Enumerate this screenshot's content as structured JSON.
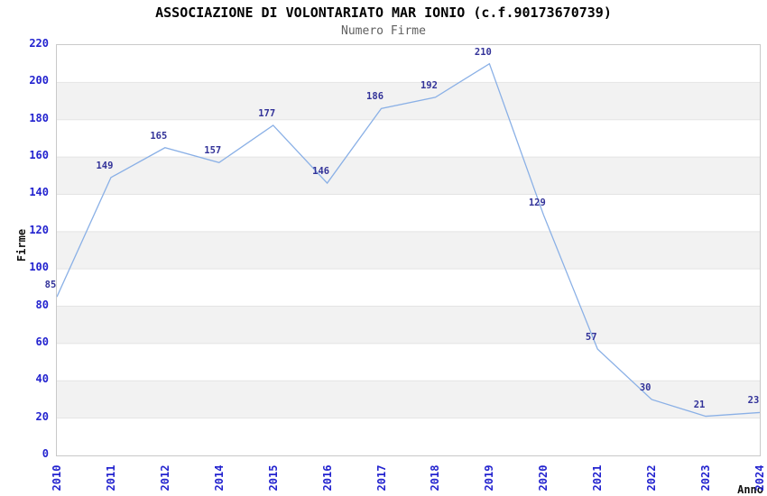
{
  "chart_data": {
    "type": "line",
    "title": "ASSOCIAZIONE DI VOLONTARIATO MAR IONIO (c.f.90173670739)",
    "subtitle": "Numero Firme",
    "xlabel": "Anno",
    "ylabel": "Firme",
    "categories": [
      "2010",
      "2011",
      "2012",
      "2014",
      "2015",
      "2016",
      "2017",
      "2018",
      "2019",
      "2020",
      "2021",
      "2022",
      "2023",
      "2024"
    ],
    "values": [
      85,
      149,
      165,
      157,
      177,
      146,
      186,
      192,
      210,
      129,
      57,
      30,
      21,
      23
    ],
    "ylim": [
      0,
      220
    ],
    "ytick_step": 20,
    "grid": "horizontal-bands",
    "legend": "none",
    "point_labels_visible": true,
    "colors": {
      "line": "#8ab0e6",
      "tick_label": "#2323cf",
      "point_label": "#333399",
      "band": "#f2f2f2",
      "grid": "#e4e4e4",
      "border": "#c9c9c9",
      "title": "#000000",
      "subtitle": "#606060",
      "axis_title": "#111111"
    }
  }
}
